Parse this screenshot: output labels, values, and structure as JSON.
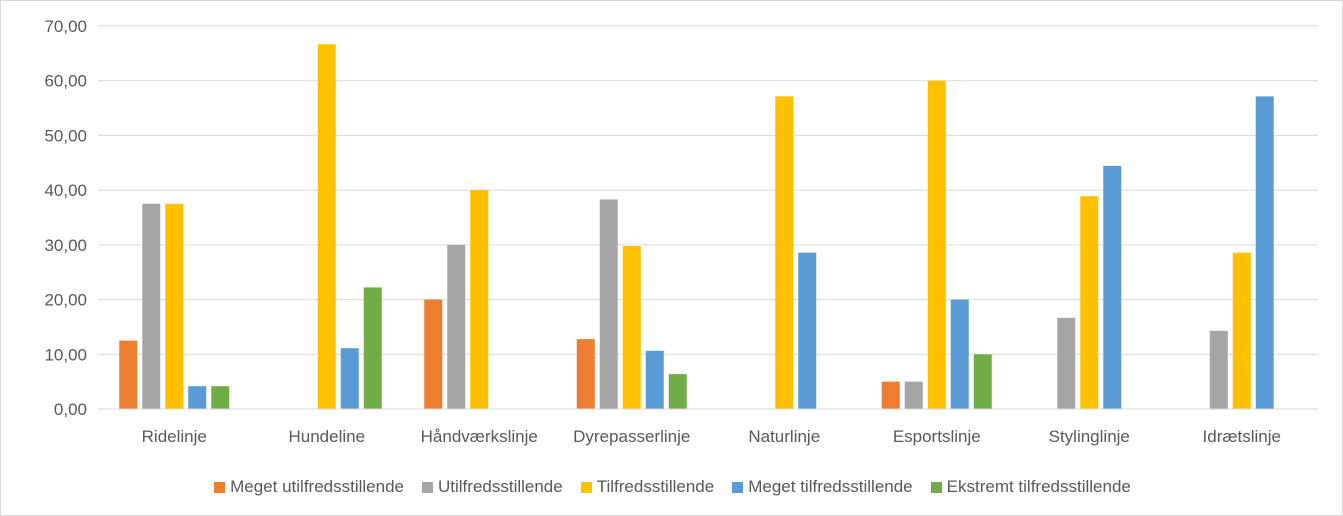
{
  "chart_data": {
    "type": "bar",
    "categories": [
      "Ridelinje",
      "Hundeline",
      "Håndværkslinje",
      "Dyrepasserlinje",
      "Naturlinje",
      "Esportslinje",
      "Stylinglinje",
      "Idrætslinje"
    ],
    "series": [
      {
        "name": "Meget utilfredsstillende",
        "color": "#ED7D31",
        "values": [
          12.5,
          0,
          20.0,
          12.77,
          0,
          5.0,
          0,
          0
        ]
      },
      {
        "name": "Utilfredsstillende",
        "color": "#A5A5A5",
        "values": [
          37.5,
          0,
          30.0,
          38.3,
          0,
          5.0,
          16.67,
          14.29
        ]
      },
      {
        "name": "Tilfredsstillende",
        "color": "#FFC000",
        "values": [
          37.5,
          66.67,
          40.0,
          29.79,
          57.14,
          60.0,
          38.89,
          28.57
        ]
      },
      {
        "name": "Meget tilfredsstillende",
        "color": "#5B9BD5",
        "values": [
          4.17,
          11.11,
          0,
          10.64,
          28.57,
          20.0,
          44.44,
          57.14
        ]
      },
      {
        "name": "Ekstremt tilfredsstillende",
        "color": "#70AD47",
        "values": [
          4.17,
          22.22,
          0,
          6.38,
          0,
          10.0,
          0,
          0
        ]
      }
    ],
    "title": "",
    "xlabel": "",
    "ylabel": "",
    "ylim": [
      0,
      70
    ],
    "yticks": [
      "0,00",
      "10,00",
      "20,00",
      "30,00",
      "40,00",
      "50,00",
      "60,00",
      "70,00"
    ],
    "grid": true,
    "legend": "bottom"
  }
}
